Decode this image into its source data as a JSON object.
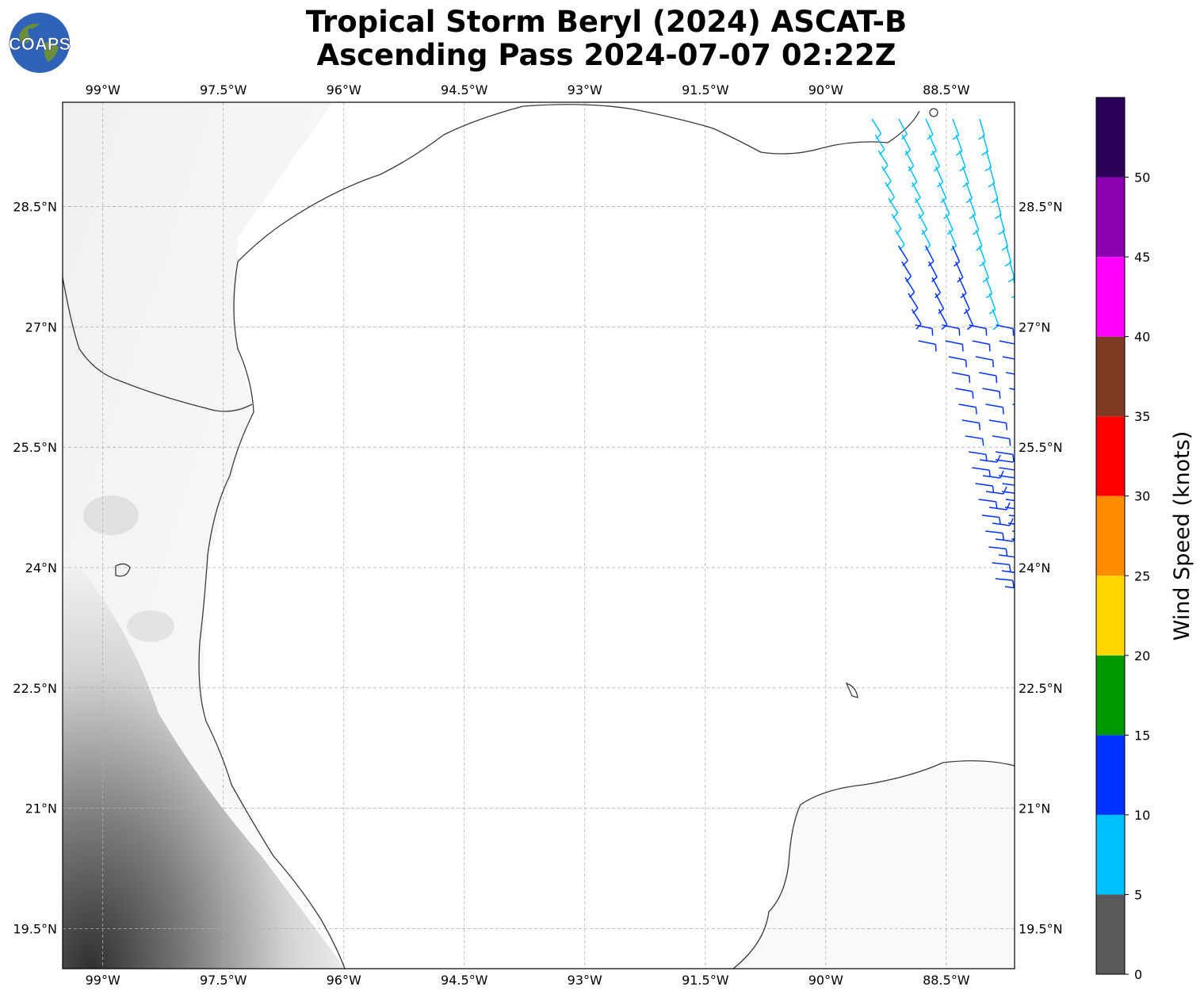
{
  "title": {
    "line1": "Tropical Storm Beryl (2024) ASCAT-B",
    "line2": "Ascending Pass 2024-07-07 02:22Z"
  },
  "logo": {
    "text": "COAPS"
  },
  "map": {
    "lon_ticks": [
      "99°W",
      "97.5°W",
      "96°W",
      "94.5°W",
      "93°W",
      "91.5°W",
      "90°W",
      "88.5°W"
    ],
    "lat_ticks": [
      "28.5°N",
      "27°N",
      "25.5°N",
      "24°N",
      "22.5°N",
      "21°N",
      "19.5°N"
    ],
    "lon_range": [
      -99.5,
      -87.65
    ],
    "lat_range": [
      19.0,
      29.8
    ],
    "gridlines": true
  },
  "colorbar": {
    "label": "Wind Speed (knots)",
    "ticks": [
      "0",
      "5",
      "10",
      "15",
      "20",
      "25",
      "30",
      "35",
      "40",
      "45",
      "50"
    ],
    "colors": [
      "#595959",
      "#00bfff",
      "#0033ff",
      "#009900",
      "#ffd700",
      "#ff8c00",
      "#ff0000",
      "#7f3b24",
      "#ff00ff",
      "#8b00b0",
      "#2b0058"
    ]
  },
  "colors": {
    "slow": "#00bfff",
    "moderate": "#0033ff",
    "coast": "#333333"
  }
}
